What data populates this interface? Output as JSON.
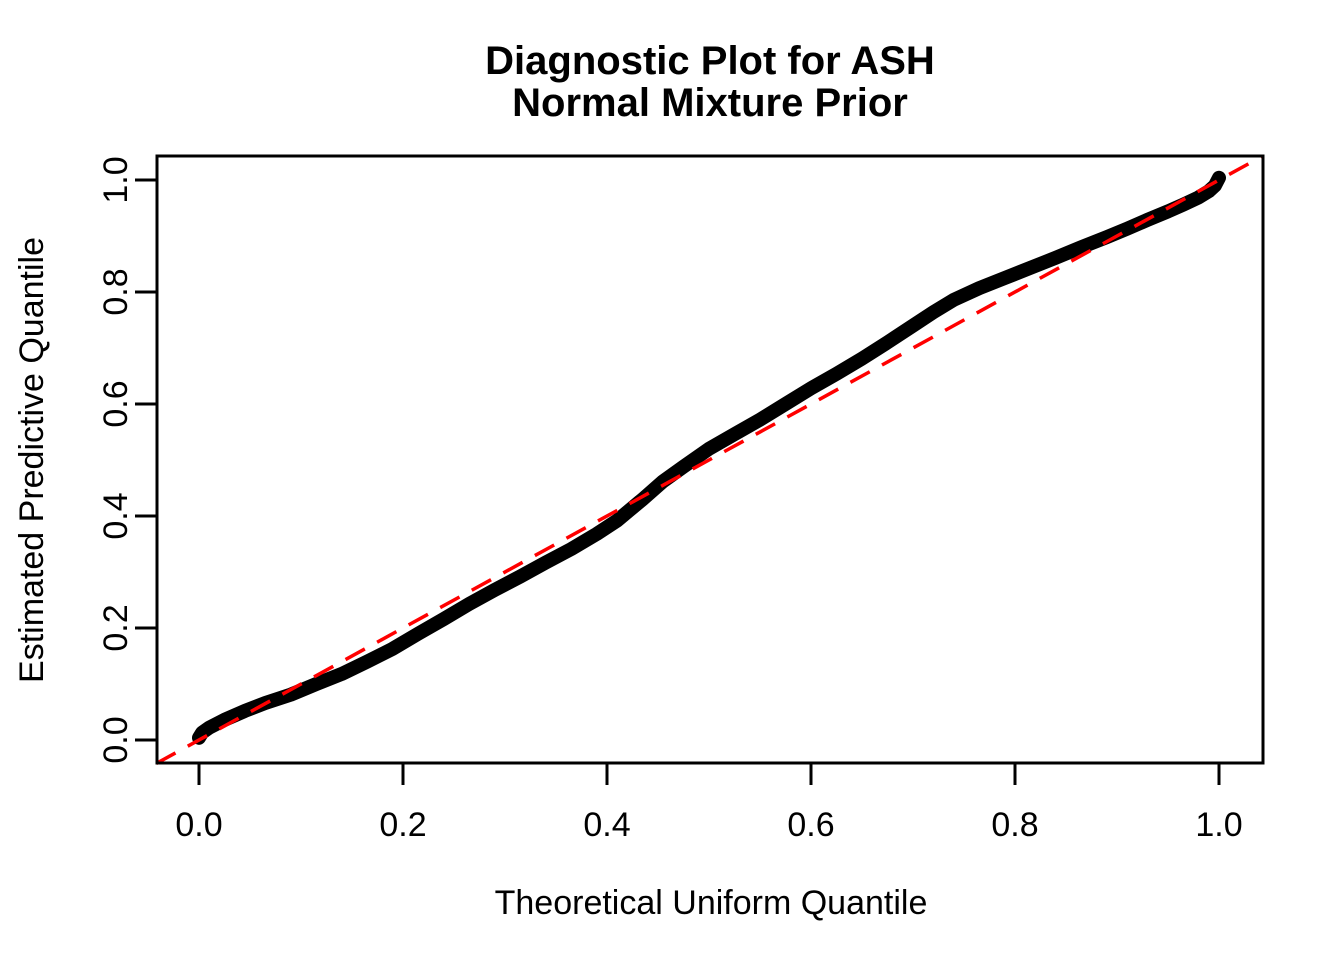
{
  "figure": {
    "title_lines": [
      "Diagnostic Plot for ASH",
      "Normal Mixture Prior"
    ],
    "x_axis_label": "Theoretical Uniform Quantile",
    "y_axis_label": "Estimated Predictive Quantile"
  },
  "chart_data": {
    "type": "line",
    "title": "Diagnostic Plot for ASH\nNormal Mixture Prior",
    "xlabel": "Theoretical Uniform Quantile",
    "ylabel": "Estimated Predictive Quantile",
    "xlim": [
      -0.042,
      1.042
    ],
    "ylim": [
      -0.042,
      1.042
    ],
    "x_ticks": [
      0.0,
      0.2,
      0.4,
      0.6,
      0.8,
      1.0
    ],
    "y_ticks": [
      0.0,
      0.2,
      0.4,
      0.6,
      0.8,
      1.0
    ],
    "x_tick_labels": [
      "0.0",
      "0.2",
      "0.4",
      "0.6",
      "0.8",
      "1.0"
    ],
    "y_tick_labels": [
      "0.0",
      "0.2",
      "0.4",
      "0.6",
      "0.8",
      "1.0"
    ],
    "grid": false,
    "legend": "none",
    "colors": {
      "curve": "#000000",
      "reference_line": "#FF0000",
      "axis": "#000000",
      "background": "#FFFFFF",
      "text": "#000000"
    },
    "series": [
      {
        "name": "estimated-vs-theoretical-quantiles",
        "type": "line",
        "color": "#000000",
        "line_width": 14,
        "points": [
          [
            0.0,
            0.004
          ],
          [
            0.003,
            0.013
          ],
          [
            0.01,
            0.022
          ],
          [
            0.025,
            0.036
          ],
          [
            0.045,
            0.052
          ],
          [
            0.065,
            0.066
          ],
          [
            0.09,
            0.081
          ],
          [
            0.115,
            0.1
          ],
          [
            0.14,
            0.118
          ],
          [
            0.165,
            0.14
          ],
          [
            0.19,
            0.163
          ],
          [
            0.215,
            0.19
          ],
          [
            0.24,
            0.216
          ],
          [
            0.265,
            0.243
          ],
          [
            0.29,
            0.268
          ],
          [
            0.315,
            0.292
          ],
          [
            0.34,
            0.317
          ],
          [
            0.365,
            0.341
          ],
          [
            0.39,
            0.368
          ],
          [
            0.41,
            0.392
          ],
          [
            0.435,
            0.43
          ],
          [
            0.455,
            0.462
          ],
          [
            0.475,
            0.488
          ],
          [
            0.5,
            0.52
          ],
          [
            0.525,
            0.546
          ],
          [
            0.55,
            0.572
          ],
          [
            0.575,
            0.6
          ],
          [
            0.6,
            0.628
          ],
          [
            0.625,
            0.654
          ],
          [
            0.65,
            0.681
          ],
          [
            0.675,
            0.71
          ],
          [
            0.7,
            0.74
          ],
          [
            0.72,
            0.764
          ],
          [
            0.74,
            0.786
          ],
          [
            0.765,
            0.807
          ],
          [
            0.79,
            0.825
          ],
          [
            0.815,
            0.843
          ],
          [
            0.84,
            0.861
          ],
          [
            0.865,
            0.88
          ],
          [
            0.89,
            0.898
          ],
          [
            0.91,
            0.913
          ],
          [
            0.93,
            0.929
          ],
          [
            0.95,
            0.944
          ],
          [
            0.965,
            0.956
          ],
          [
            0.98,
            0.969
          ],
          [
            0.99,
            0.98
          ],
          [
            0.996,
            0.99
          ],
          [
            1.0,
            1.004
          ]
        ]
      },
      {
        "name": "reference-diagonal-y-equals-x",
        "type": "line",
        "style": "dashed",
        "color": "#FF0000",
        "line_width": 3.5,
        "dash_pattern": [
          22,
          14
        ],
        "points": [
          [
            -0.042,
            -0.042
          ],
          [
            1.042,
            1.042
          ]
        ]
      }
    ]
  }
}
